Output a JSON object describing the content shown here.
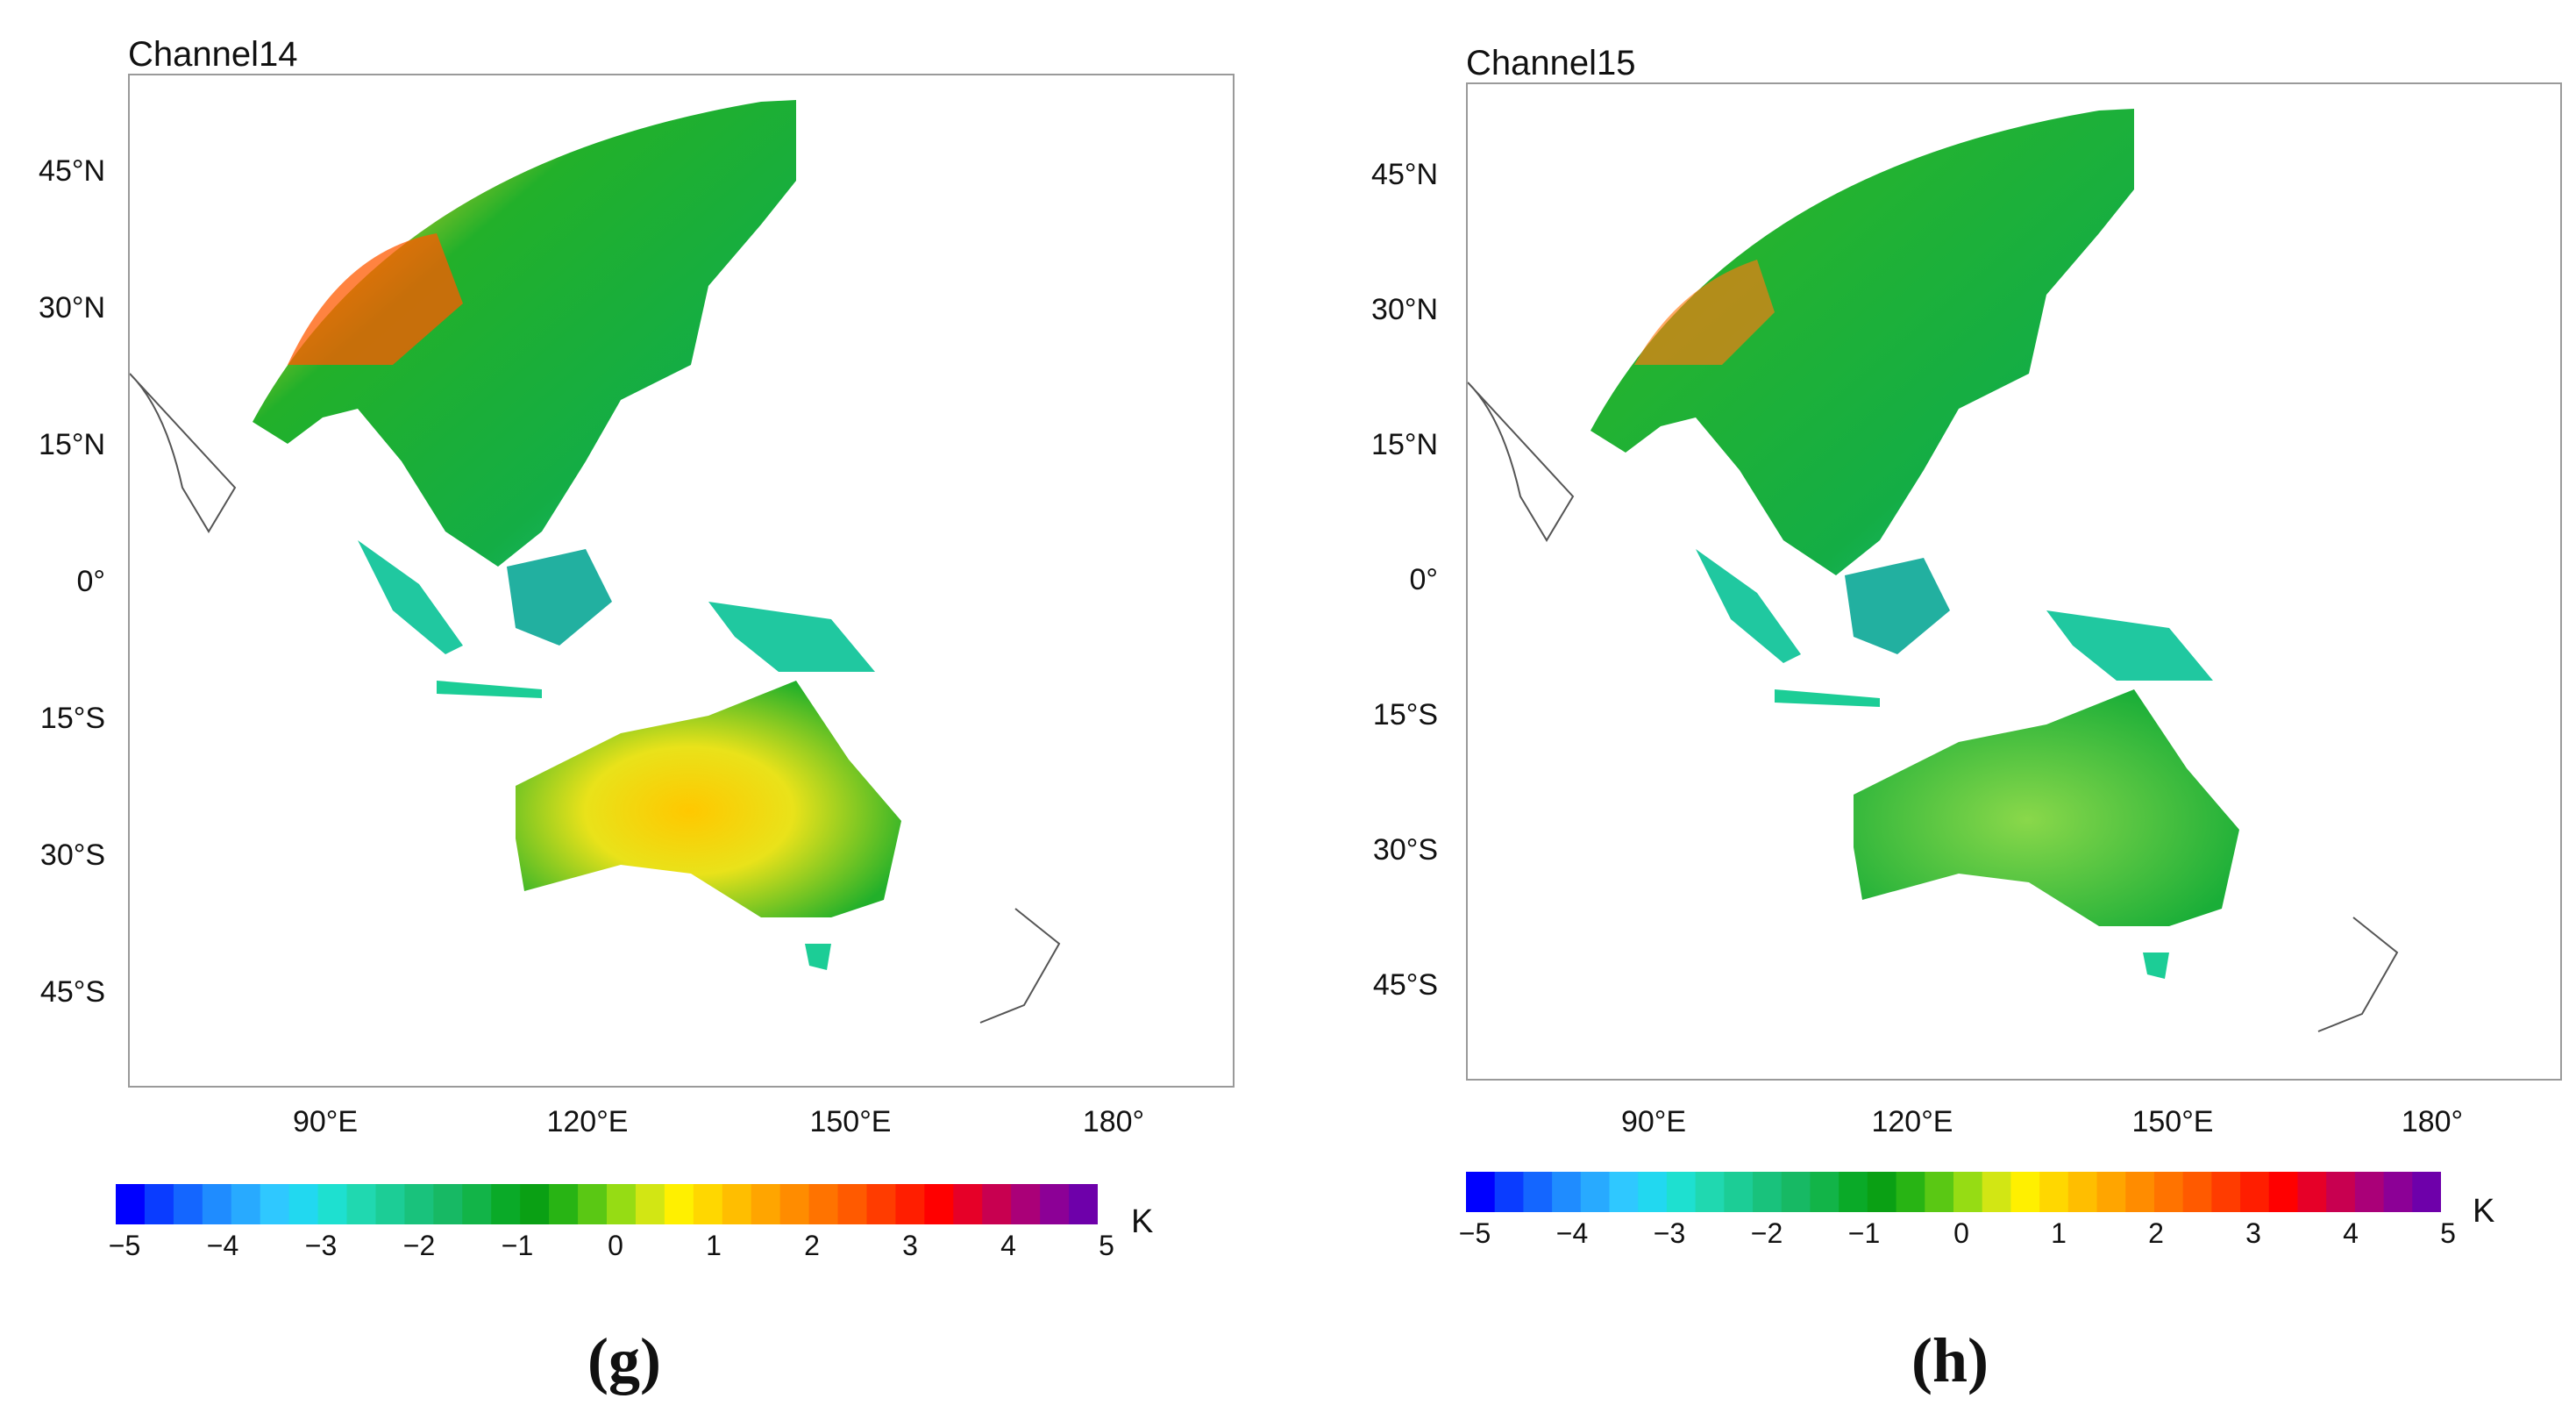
{
  "panels": [
    {
      "id": "g",
      "title": "Channel14",
      "subfigure_label": "(g)",
      "lat_ticks": [
        "45°N",
        "30°N",
        "15°N",
        "0°",
        "15°S",
        "30°S",
        "45°S"
      ],
      "lon_ticks": [
        "90°E",
        "120°E",
        "150°E",
        "180°"
      ],
      "colorbar_ticks": [
        "−5",
        "−4",
        "−3",
        "−2",
        "−1",
        "0",
        "1",
        "2",
        "3",
        "4",
        "5"
      ],
      "unit": "K"
    },
    {
      "id": "h",
      "title": "Channel15",
      "subfigure_label": "(h)",
      "lat_ticks": [
        "45°N",
        "30°N",
        "15°N",
        "0°",
        "15°S",
        "30°S",
        "45°S"
      ],
      "lon_ticks": [
        "90°E",
        "120°E",
        "150°E",
        "180°"
      ],
      "colorbar_ticks": [
        "−5",
        "−4",
        "−3",
        "−2",
        "−1",
        "0",
        "1",
        "2",
        "3",
        "4",
        "5"
      ],
      "unit": "K"
    }
  ],
  "colorbar": {
    "min": -5,
    "max": 5,
    "colors": [
      "#0000ff",
      "#0a3cff",
      "#1466ff",
      "#1f8cff",
      "#28aaff",
      "#2fc8ff",
      "#22d8f0",
      "#1ee0d0",
      "#20d8b0",
      "#1ccd96",
      "#19c27c",
      "#17b964",
      "#12b448",
      "#0aaa28",
      "#0aa014",
      "#28b414",
      "#5ac814",
      "#96dc14",
      "#d2e614",
      "#fff000",
      "#ffd700",
      "#ffbe00",
      "#ffa500",
      "#ff8c00",
      "#ff7300",
      "#ff5a00",
      "#ff3c00",
      "#ff1e00",
      "#ff0000",
      "#e60028",
      "#c80050",
      "#aa0078",
      "#8c0096",
      "#6e00aa"
    ]
  },
  "colors": {
    "frame": "#9a9a9a",
    "coast": "#555555"
  }
}
